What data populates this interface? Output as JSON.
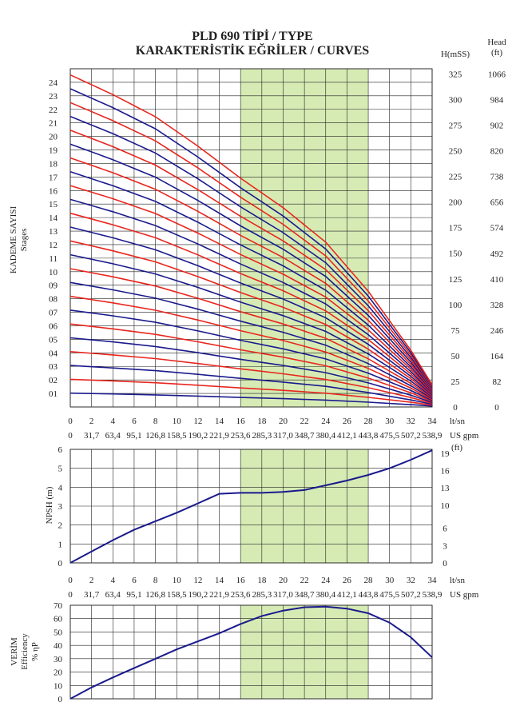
{
  "title": {
    "line1": "PLD  690 TİPİ / TYPE",
    "line2": "KARAKTERİSTİK EĞRİLER / CURVES"
  },
  "colors": {
    "blue": "#1a1a8c",
    "red": "#e8261e",
    "band": "#d6ebb4",
    "grid": "#222222"
  },
  "flow_axis": {
    "lt_sn": [
      0,
      2,
      4,
      6,
      8,
      10,
      12,
      14,
      16,
      18,
      20,
      22,
      24,
      26,
      28,
      30,
      32,
      34
    ],
    "us_gpm": [
      "0",
      "31,7",
      "63,4",
      "95,1",
      "126,8",
      "158,5",
      "190,2",
      "221,9",
      "253,6",
      "285,3",
      "317,0",
      "348,7",
      "380,4",
      "412,1",
      "443,8",
      "475,5",
      "507,2",
      "538,9"
    ],
    "unit_lt": "lt/sn",
    "unit_gpm": "US gpm",
    "recommended_band": [
      16,
      28
    ]
  },
  "chart_data": [
    {
      "type": "line",
      "name": "head",
      "ylabel": "KADEME SAYISI",
      "ylabel_sub": "Stages",
      "stage_ticks": [
        "01",
        "02",
        "03",
        "04",
        "05",
        "06",
        "07",
        "08",
        "09",
        "10",
        "11",
        "12",
        "13",
        "14",
        "15",
        "16",
        "17",
        "18",
        "19",
        "20",
        "21",
        "22",
        "23",
        "24"
      ],
      "right_axis_1_title": "H(mSS)",
      "right_axis_1": [
        0,
        25,
        50,
        75,
        100,
        125,
        150,
        175,
        200,
        225,
        250,
        275,
        300,
        325
      ],
      "right_axis_2_title": "Head",
      "right_axis_2_unit": "(ft)",
      "right_axis_2": [
        0,
        82,
        164,
        246,
        328,
        410,
        492,
        574,
        656,
        738,
        820,
        902,
        984,
        1066
      ],
      "single_stage_head_m": {
        "x": [
          0,
          4,
          8,
          12,
          16,
          20,
          24,
          28,
          32,
          34
        ],
        "y": [
          13.5,
          12.7,
          11.8,
          10.6,
          9.3,
          8.1,
          6.7,
          4.7,
          2.3,
          0.9
        ]
      },
      "stages": [
        1,
        24
      ],
      "stage_colors": "odd blue, even red"
    },
    {
      "type": "line",
      "name": "npsh",
      "ylabel": "NPSH (m)",
      "y_left_ticks": [
        0,
        1,
        2,
        3,
        4,
        5,
        6
      ],
      "y_right_ticks": [
        0,
        3,
        6,
        10,
        13,
        16,
        19
      ],
      "y_right_unit": "(ft)",
      "ylim": [
        0,
        6
      ],
      "x": [
        0,
        2,
        4,
        6,
        8,
        10,
        12,
        14,
        16,
        18,
        20,
        22,
        24,
        26,
        28,
        30,
        32,
        34
      ],
      "y": [
        0.0,
        0.6,
        1.2,
        1.75,
        2.2,
        2.65,
        3.15,
        3.65,
        3.7,
        3.7,
        3.75,
        3.85,
        4.1,
        4.35,
        4.65,
        5.0,
        5.45,
        5.95
      ]
    },
    {
      "type": "line",
      "name": "efficiency",
      "ylabel": "VERİM",
      "ylabel_2": "Efficiency",
      "ylabel_3": "% ηP",
      "y_ticks": [
        0,
        10,
        20,
        30,
        40,
        50,
        60,
        70
      ],
      "ylim": [
        0,
        70
      ],
      "x": [
        0,
        2,
        4,
        6,
        8,
        10,
        12,
        14,
        16,
        18,
        20,
        22,
        24,
        26,
        28,
        30,
        32,
        34
      ],
      "y": [
        0,
        8.5,
        16,
        23,
        30,
        37,
        43,
        49,
        56,
        62,
        66,
        68.5,
        69,
        67.5,
        64,
        57,
        46,
        31
      ]
    }
  ]
}
